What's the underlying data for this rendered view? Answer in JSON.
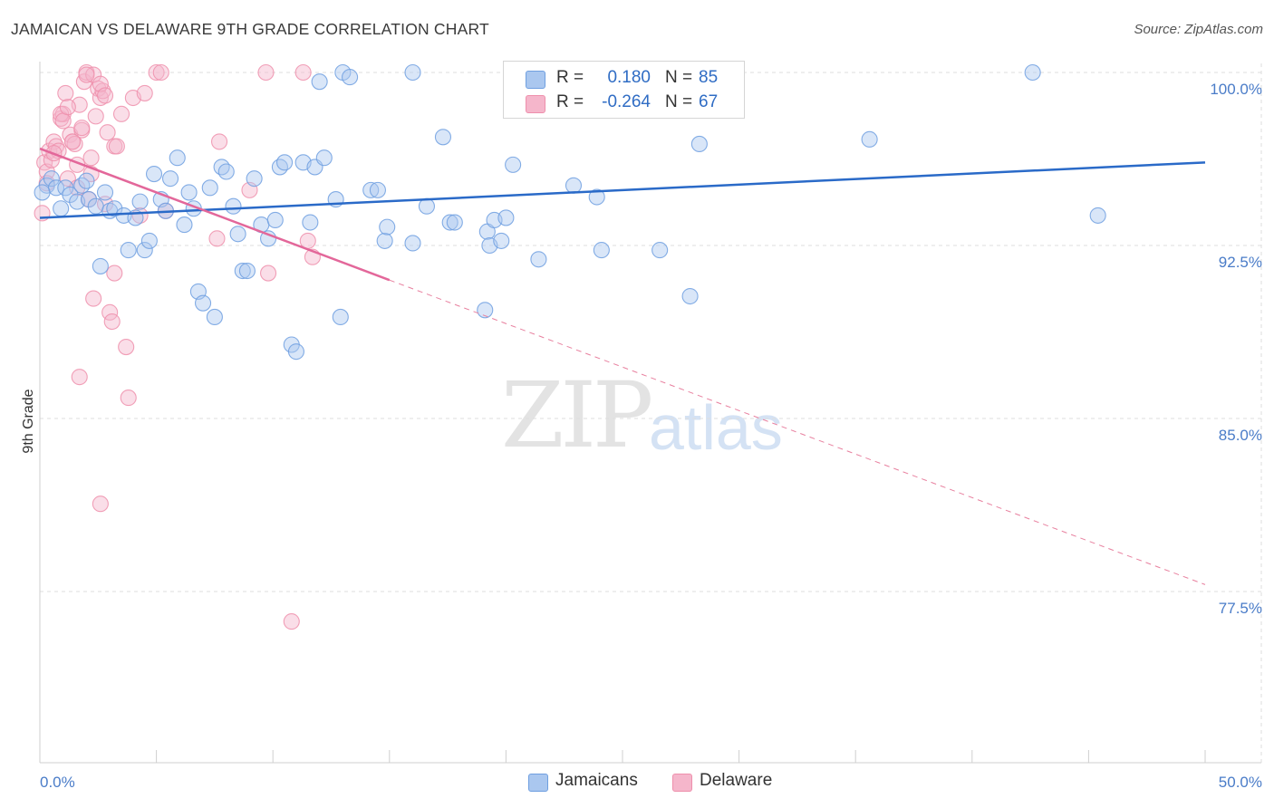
{
  "header": {
    "title": "JAMAICAN VS DELAWARE 9TH GRADE CORRELATION CHART",
    "source": "Source: ZipAtlas.com"
  },
  "watermark": {
    "zip": "ZIP",
    "atlas": "atlas"
  },
  "legend_box": {
    "rows": [
      {
        "r_label": "R =",
        "r_value": "0.180",
        "n_label": "N =",
        "n_value": "85",
        "color": "#aac7ef"
      },
      {
        "r_label": "R =",
        "r_value": "-0.264",
        "n_label": "N =",
        "n_value": "67",
        "color": "#f5b6cb"
      }
    ]
  },
  "bottom_legend": {
    "items": [
      {
        "label": "Jamaicans",
        "color": "#aac7ef"
      },
      {
        "label": "Delaware",
        "color": "#f5b6cb"
      }
    ]
  },
  "chart_data": {
    "type": "scatter",
    "title": "JAMAICAN VS DELAWARE 9TH GRADE CORRELATION CHART",
    "xlabel": "",
    "ylabel": "9th Grade",
    "xlim": [
      0,
      50
    ],
    "ylim": [
      71.5,
      100.3
    ],
    "x_tick_labels": [
      "0.0%",
      "50.0%"
    ],
    "y_ticks": [
      77.5,
      85.0,
      92.5,
      100.0
    ],
    "y_tick_labels": [
      "77.5%",
      "85.0%",
      "92.5%",
      "100.0%"
    ],
    "grid": true,
    "series": [
      {
        "name": "Jamaicans",
        "color": "#6f9fe0",
        "fill": "#aac7ef",
        "trend": {
          "x0": 0,
          "y0": 93.7,
          "x1": 50,
          "y1": 96.1
        },
        "points": [
          [
            0.3,
            95.1
          ],
          [
            0.5,
            95.4
          ],
          [
            0.7,
            95.0
          ],
          [
            0.9,
            94.1
          ],
          [
            1.1,
            95.0
          ],
          [
            1.3,
            94.7
          ],
          [
            1.6,
            94.4
          ],
          [
            1.8,
            95.1
          ],
          [
            2.1,
            94.5
          ],
          [
            2.4,
            94.2
          ],
          [
            2.6,
            91.6
          ],
          [
            2.8,
            94.8
          ],
          [
            3.0,
            94.0
          ],
          [
            3.2,
            94.1
          ],
          [
            3.6,
            93.8
          ],
          [
            3.8,
            92.3
          ],
          [
            4.1,
            93.7
          ],
          [
            4.3,
            94.4
          ],
          [
            4.5,
            92.3
          ],
          [
            4.7,
            92.7
          ],
          [
            4.9,
            95.6
          ],
          [
            5.2,
            94.5
          ],
          [
            5.4,
            94.0
          ],
          [
            5.6,
            95.4
          ],
          [
            5.9,
            96.3
          ],
          [
            6.2,
            93.4
          ],
          [
            6.4,
            94.8
          ],
          [
            6.6,
            94.1
          ],
          [
            6.8,
            90.5
          ],
          [
            7.0,
            90.0
          ],
          [
            7.3,
            95.0
          ],
          [
            7.5,
            89.4
          ],
          [
            7.8,
            95.9
          ],
          [
            8.0,
            95.7
          ],
          [
            8.3,
            94.2
          ],
          [
            8.5,
            93.0
          ],
          [
            8.7,
            91.4
          ],
          [
            8.9,
            91.4
          ],
          [
            9.2,
            95.4
          ],
          [
            9.5,
            93.4
          ],
          [
            9.8,
            92.8
          ],
          [
            10.1,
            93.6
          ],
          [
            10.3,
            95.9
          ],
          [
            10.5,
            96.1
          ],
          [
            10.8,
            88.2
          ],
          [
            11.0,
            87.9
          ],
          [
            11.3,
            96.1
          ],
          [
            11.6,
            93.5
          ],
          [
            11.8,
            95.9
          ],
          [
            12.0,
            99.6
          ],
          [
            12.2,
            96.3
          ],
          [
            12.7,
            94.5
          ],
          [
            12.9,
            89.4
          ],
          [
            13.0,
            100.0
          ],
          [
            13.3,
            99.8
          ],
          [
            14.2,
            94.9
          ],
          [
            14.5,
            94.9
          ],
          [
            14.8,
            92.7
          ],
          [
            14.9,
            93.3
          ],
          [
            16.0,
            100.0
          ],
          [
            16.0,
            92.6
          ],
          [
            16.6,
            94.2
          ],
          [
            17.3,
            97.2
          ],
          [
            17.6,
            93.5
          ],
          [
            17.8,
            93.5
          ],
          [
            19.1,
            89.7
          ],
          [
            19.2,
            93.1
          ],
          [
            19.3,
            92.5
          ],
          [
            19.5,
            93.6
          ],
          [
            19.8,
            92.7
          ],
          [
            20.0,
            93.7
          ],
          [
            20.3,
            96.0
          ],
          [
            21.4,
            91.9
          ],
          [
            22.9,
            95.1
          ],
          [
            23.9,
            94.6
          ],
          [
            24.1,
            92.3
          ],
          [
            26.6,
            92.3
          ],
          [
            27.1,
            100.0
          ],
          [
            27.9,
            90.3
          ],
          [
            28.3,
            96.9
          ],
          [
            35.6,
            97.1
          ],
          [
            42.6,
            100.0
          ],
          [
            45.4,
            93.8
          ],
          [
            2.0,
            95.3
          ],
          [
            0.1,
            94.8
          ]
        ]
      },
      {
        "name": "Delaware",
        "color": "#ee8fac",
        "fill": "#f5b6cb",
        "trend": {
          "x0": 0,
          "y0": 96.7,
          "x1": 15.0,
          "y1": 91.0,
          "dash_x1": 50,
          "dash_y1": 77.8
        },
        "points": [
          [
            0.1,
            93.9
          ],
          [
            0.2,
            96.1
          ],
          [
            0.3,
            95.7
          ],
          [
            0.4,
            96.6
          ],
          [
            0.5,
            96.2
          ],
          [
            0.6,
            97.0
          ],
          [
            0.7,
            96.8
          ],
          [
            0.8,
            96.6
          ],
          [
            0.9,
            98.0
          ],
          [
            1.0,
            98.2
          ],
          [
            1.1,
            99.1
          ],
          [
            1.2,
            95.4
          ],
          [
            1.3,
            97.3
          ],
          [
            1.4,
            97.0
          ],
          [
            1.5,
            96.9
          ],
          [
            1.6,
            96.0
          ],
          [
            1.7,
            98.6
          ],
          [
            1.8,
            97.5
          ],
          [
            1.9,
            99.6
          ],
          [
            2.0,
            100.0
          ],
          [
            2.1,
            94.5
          ],
          [
            2.2,
            96.3
          ],
          [
            2.3,
            99.9
          ],
          [
            2.4,
            98.1
          ],
          [
            2.5,
            99.3
          ],
          [
            2.6,
            98.9
          ],
          [
            2.7,
            99.2
          ],
          [
            2.8,
            94.3
          ],
          [
            2.9,
            97.4
          ],
          [
            3.0,
            89.6
          ],
          [
            3.1,
            89.2
          ],
          [
            3.2,
            96.8
          ],
          [
            3.3,
            96.8
          ],
          [
            3.5,
            98.2
          ],
          [
            3.7,
            88.1
          ],
          [
            3.8,
            85.9
          ],
          [
            4.0,
            98.9
          ],
          [
            4.3,
            93.8
          ],
          [
            4.5,
            99.1
          ],
          [
            5.0,
            100.0
          ],
          [
            5.2,
            100.0
          ],
          [
            5.4,
            94.0
          ],
          [
            7.6,
            92.8
          ],
          [
            7.7,
            97.0
          ],
          [
            9.0,
            94.9
          ],
          [
            9.7,
            100.0
          ],
          [
            9.8,
            91.3
          ],
          [
            10.8,
            76.2
          ],
          [
            11.3,
            100.0
          ],
          [
            11.5,
            92.7
          ],
          [
            11.7,
            92.0
          ],
          [
            1.7,
            86.8
          ],
          [
            2.3,
            90.2
          ],
          [
            2.6,
            81.3
          ],
          [
            3.2,
            91.3
          ],
          [
            0.9,
            98.2
          ],
          [
            1.4,
            97.0
          ],
          [
            1.8,
            97.6
          ],
          [
            2.2,
            95.6
          ],
          [
            2.6,
            99.5
          ],
          [
            2.0,
            99.9
          ],
          [
            1.0,
            97.9
          ],
          [
            0.6,
            96.5
          ],
          [
            1.2,
            98.5
          ],
          [
            2.8,
            99.0
          ],
          [
            0.3,
            95.2
          ],
          [
            1.6,
            95.0
          ]
        ]
      }
    ]
  }
}
